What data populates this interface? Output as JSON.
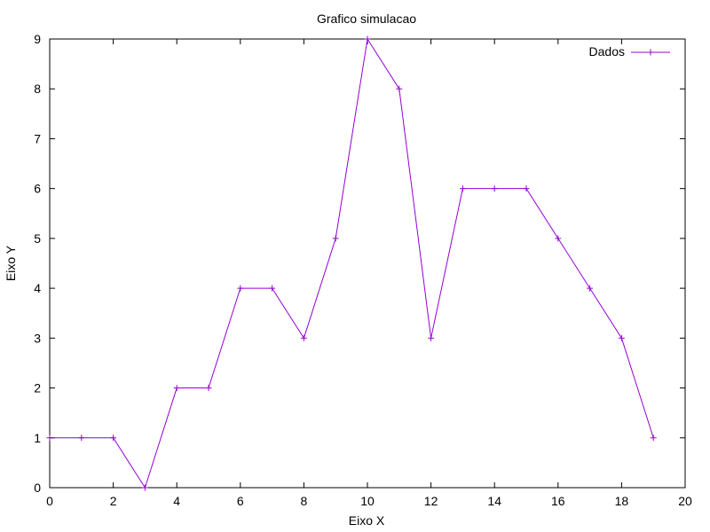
{
  "chart_data": {
    "type": "line",
    "title": "Grafico simulacao",
    "xlabel": "Eixo X",
    "ylabel": "Eixo Y",
    "xlim": [
      0,
      20
    ],
    "ylim": [
      0,
      9
    ],
    "xticks": [
      0,
      2,
      4,
      6,
      8,
      10,
      12,
      14,
      16,
      18,
      20
    ],
    "yticks": [
      0,
      1,
      2,
      3,
      4,
      5,
      6,
      7,
      8,
      9
    ],
    "grid": false,
    "legend_position": "top-right",
    "series": [
      {
        "name": "Dados",
        "color": "#9400d3",
        "marker": "plus",
        "x": [
          0,
          1,
          2,
          3,
          4,
          5,
          6,
          7,
          8,
          9,
          10,
          11,
          12,
          13,
          14,
          15,
          16,
          17,
          18,
          19
        ],
        "y": [
          1,
          1,
          1,
          0,
          2,
          2,
          4,
          4,
          3,
          5,
          9,
          8,
          3,
          6,
          6,
          6,
          5,
          4,
          3,
          1
        ]
      }
    ]
  }
}
